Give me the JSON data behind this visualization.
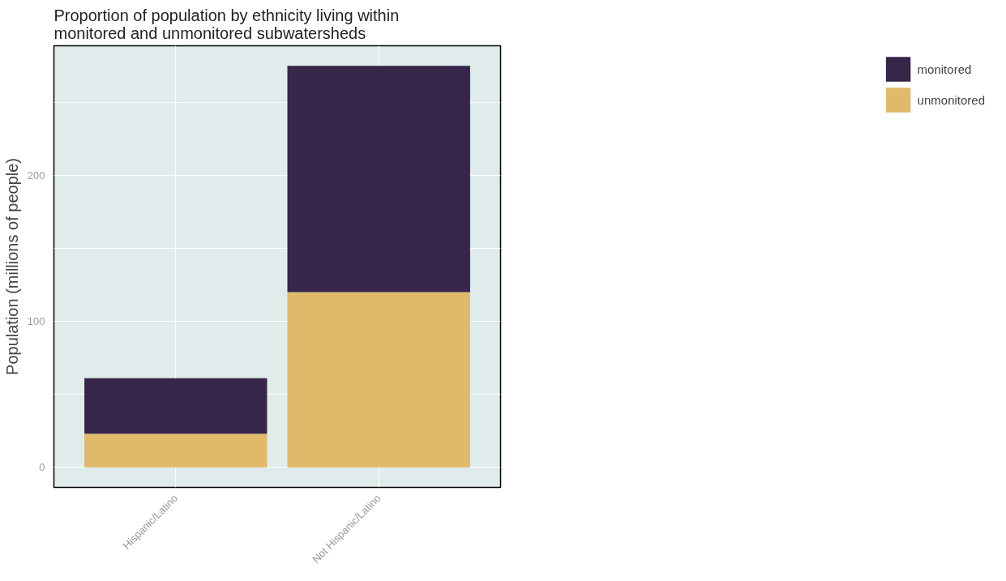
{
  "chart_data": {
    "type": "bar",
    "title": "Proportion of population by ethnicity living within\nmonitored and unmonitored subwatersheds",
    "ylabel": "Population (millions of people)",
    "categories": [
      "Hispanic/Latino",
      "Not Hispanic/Latino"
    ],
    "stacked": true,
    "series": [
      {
        "name": "unmonitored",
        "color": "#e0ba6a",
        "values": [
          23,
          120
        ]
      },
      {
        "name": "monitored",
        "color": "#36264a",
        "values": [
          38,
          155
        ]
      }
    ],
    "ylim": [
      -13.75,
      288.75
    ],
    "yticks": [
      0,
      {
        "value": 50,
        "label": null
      },
      100,
      {
        "value": 150,
        "label": null
      },
      200,
      {
        "value": 250,
        "label": null
      }
    ],
    "grid": true,
    "legend": "right"
  }
}
